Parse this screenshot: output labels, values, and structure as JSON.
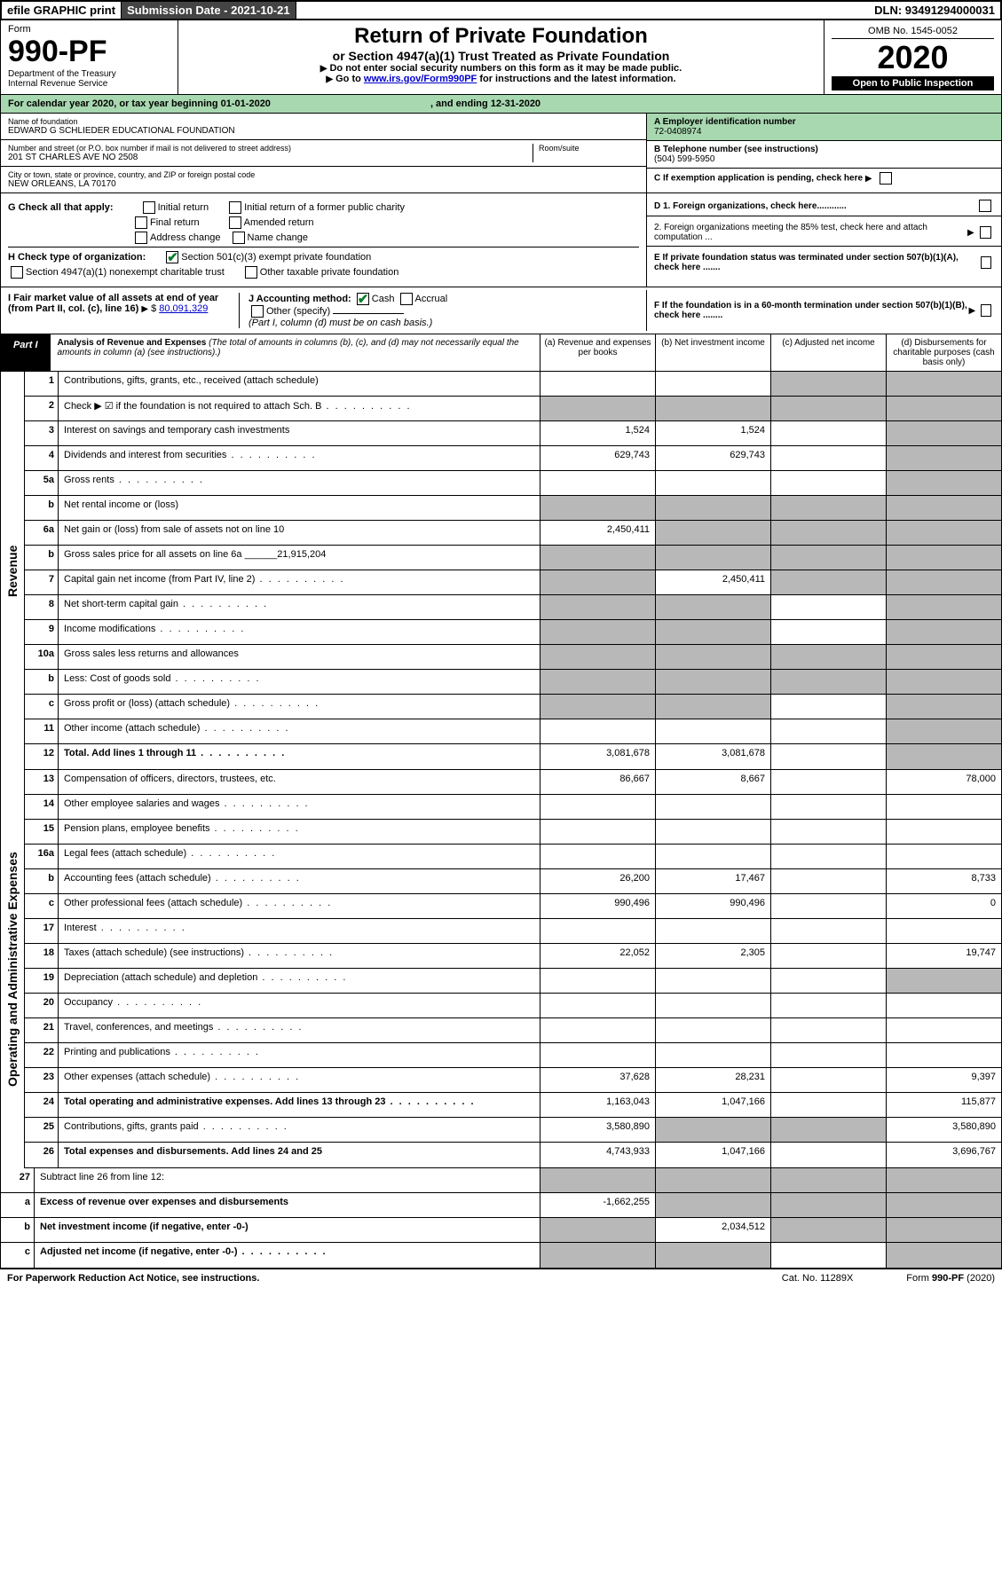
{
  "topbar": {
    "efile": "efile GRAPHIC print",
    "subdate_label": "Submission Date - 2021-10-21",
    "dln": "DLN: 93491294000031"
  },
  "header": {
    "form_label": "Form",
    "form_no": "990-PF",
    "dept": "Department of the Treasury",
    "irs": "Internal Revenue Service",
    "title": "Return of Private Foundation",
    "subtitle": "or Section 4947(a)(1) Trust Treated as Private Foundation",
    "note1": "Do not enter social security numbers on this form as it may be made public.",
    "note2_pre": "Go to ",
    "note2_link": "www.irs.gov/Form990PF",
    "note2_post": " for instructions and the latest information.",
    "omb": "OMB No. 1545-0052",
    "year": "2020",
    "openpub": "Open to Public Inspection"
  },
  "calendar": {
    "text_pre": "For calendar year 2020, or tax year beginning ",
    "begin": "01-01-2020",
    "mid": ", and ending ",
    "end": "12-31-2020"
  },
  "info": {
    "name_label": "Name of foundation",
    "name": "EDWARD G SCHLIEDER EDUCATIONAL FOUNDATION",
    "addr_label": "Number and street (or P.O. box number if mail is not delivered to street address)",
    "addr": "201 ST CHARLES AVE NO 2508",
    "room_label": "Room/suite",
    "city_label": "City or town, state or province, country, and ZIP or foreign postal code",
    "city": "NEW ORLEANS, LA  70170",
    "ein_label": "A Employer identification number",
    "ein": "72-0408974",
    "tel_label": "B Telephone number (see instructions)",
    "tel": "(504) 599-5950",
    "c_label": "C If exemption application is pending, check here",
    "g_label": "G Check all that apply:",
    "g_opts": [
      "Initial return",
      "Initial return of a former public charity",
      "Final return",
      "Amended return",
      "Address change",
      "Name change"
    ],
    "d1": "D 1. Foreign organizations, check here............",
    "d2": "2. Foreign organizations meeting the 85% test, check here and attach computation ...",
    "e": "E If private foundation status was terminated under section 507(b)(1)(A), check here .......",
    "f": "F If the foundation is in a 60-month termination under section 507(b)(1)(B), check here ........",
    "h_label": "H Check type of organization:",
    "h1": "Section 501(c)(3) exempt private foundation",
    "h2": "Section 4947(a)(1) nonexempt charitable trust",
    "h3": "Other taxable private foundation",
    "i_label": "I Fair market value of all assets at end of year (from Part II, col. (c), line 16)",
    "i_val": "80,091,329",
    "j_label": "J Accounting method:",
    "j_cash": "Cash",
    "j_accrual": "Accrual",
    "j_other": "Other (specify)",
    "j_note": "(Part I, column (d) must be on cash basis.)"
  },
  "part1": {
    "tab": "Part I",
    "title": "Analysis of Revenue and Expenses",
    "note": "(The total of amounts in columns (b), (c), and (d) may not necessarily equal the amounts in column (a) (see instructions).)",
    "col_a": "(a)  Revenue and expenses per books",
    "col_b": "(b)  Net investment income",
    "col_c": "(c)  Adjusted net income",
    "col_d": "(d)  Disbursements for charitable purposes (cash basis only)"
  },
  "side_rev": "Revenue",
  "side_exp": "Operating and Administrative Expenses",
  "rows": [
    {
      "n": "1",
      "d": "Contributions, gifts, grants, etc., received (attach schedule)",
      "a": "",
      "b": "",
      "c": "g",
      "dd": "g"
    },
    {
      "n": "2",
      "d": "Check ▶ ☑ if the foundation is not required to attach Sch. B",
      "a": "g",
      "b": "g",
      "c": "g",
      "dd": "g",
      "dots": 1
    },
    {
      "n": "3",
      "d": "Interest on savings and temporary cash investments",
      "a": "1,524",
      "b": "1,524",
      "c": "",
      "dd": "g"
    },
    {
      "n": "4",
      "d": "Dividends and interest from securities",
      "a": "629,743",
      "b": "629,743",
      "c": "",
      "dd": "g",
      "dots": 1
    },
    {
      "n": "5a",
      "d": "Gross rents",
      "a": "",
      "b": "",
      "c": "",
      "dd": "g",
      "dots": 1
    },
    {
      "n": "b",
      "d": "Net rental income or (loss)",
      "a": "g",
      "b": "g",
      "c": "g",
      "dd": "g"
    },
    {
      "n": "6a",
      "d": "Net gain or (loss) from sale of assets not on line 10",
      "a": "2,450,411",
      "b": "g",
      "c": "g",
      "dd": "g"
    },
    {
      "n": "b",
      "d": "Gross sales price for all assets on line 6a ______21,915,204",
      "a": "g",
      "b": "g",
      "c": "g",
      "dd": "g"
    },
    {
      "n": "7",
      "d": "Capital gain net income (from Part IV, line 2)",
      "a": "g",
      "b": "2,450,411",
      "c": "g",
      "dd": "g",
      "dots": 1
    },
    {
      "n": "8",
      "d": "Net short-term capital gain",
      "a": "g",
      "b": "g",
      "c": "",
      "dd": "g",
      "dots": 1
    },
    {
      "n": "9",
      "d": "Income modifications",
      "a": "g",
      "b": "g",
      "c": "",
      "dd": "g",
      "dots": 1
    },
    {
      "n": "10a",
      "d": "Gross sales less returns and allowances",
      "a": "g",
      "b": "g",
      "c": "g",
      "dd": "g"
    },
    {
      "n": "b",
      "d": "Less: Cost of goods sold",
      "a": "g",
      "b": "g",
      "c": "g",
      "dd": "g",
      "dots": 1
    },
    {
      "n": "c",
      "d": "Gross profit or (loss) (attach schedule)",
      "a": "g",
      "b": "g",
      "c": "",
      "dd": "g",
      "dots": 1
    },
    {
      "n": "11",
      "d": "Other income (attach schedule)",
      "a": "",
      "b": "",
      "c": "",
      "dd": "g",
      "dots": 1
    },
    {
      "n": "12",
      "d": "Total. Add lines 1 through 11",
      "a": "3,081,678",
      "b": "3,081,678",
      "c": "",
      "dd": "g",
      "bold": 1,
      "dots": 1
    }
  ],
  "rows2": [
    {
      "n": "13",
      "d": "Compensation of officers, directors, trustees, etc.",
      "a": "86,667",
      "b": "8,667",
      "c": "",
      "dd": "78,000"
    },
    {
      "n": "14",
      "d": "Other employee salaries and wages",
      "a": "",
      "b": "",
      "c": "",
      "dd": "",
      "dots": 1
    },
    {
      "n": "15",
      "d": "Pension plans, employee benefits",
      "a": "",
      "b": "",
      "c": "",
      "dd": "",
      "dots": 1
    },
    {
      "n": "16a",
      "d": "Legal fees (attach schedule)",
      "a": "",
      "b": "",
      "c": "",
      "dd": "",
      "dots": 1
    },
    {
      "n": "b",
      "d": "Accounting fees (attach schedule)",
      "a": "26,200",
      "b": "17,467",
      "c": "",
      "dd": "8,733",
      "dots": 1
    },
    {
      "n": "c",
      "d": "Other professional fees (attach schedule)",
      "a": "990,496",
      "b": "990,496",
      "c": "",
      "dd": "0",
      "dots": 1
    },
    {
      "n": "17",
      "d": "Interest",
      "a": "",
      "b": "",
      "c": "",
      "dd": "",
      "dots": 1
    },
    {
      "n": "18",
      "d": "Taxes (attach schedule) (see instructions)",
      "a": "22,052",
      "b": "2,305",
      "c": "",
      "dd": "19,747",
      "dots": 1
    },
    {
      "n": "19",
      "d": "Depreciation (attach schedule) and depletion",
      "a": "",
      "b": "",
      "c": "",
      "dd": "g",
      "dots": 1
    },
    {
      "n": "20",
      "d": "Occupancy",
      "a": "",
      "b": "",
      "c": "",
      "dd": "",
      "dots": 1
    },
    {
      "n": "21",
      "d": "Travel, conferences, and meetings",
      "a": "",
      "b": "",
      "c": "",
      "dd": "",
      "dots": 1
    },
    {
      "n": "22",
      "d": "Printing and publications",
      "a": "",
      "b": "",
      "c": "",
      "dd": "",
      "dots": 1
    },
    {
      "n": "23",
      "d": "Other expenses (attach schedule)",
      "a": "37,628",
      "b": "28,231",
      "c": "",
      "dd": "9,397",
      "dots": 1
    },
    {
      "n": "24",
      "d": "Total operating and administrative expenses. Add lines 13 through 23",
      "a": "1,163,043",
      "b": "1,047,166",
      "c": "",
      "dd": "115,877",
      "bold": 1,
      "dots": 1
    },
    {
      "n": "25",
      "d": "Contributions, gifts, grants paid",
      "a": "3,580,890",
      "b": "g",
      "c": "g",
      "dd": "3,580,890",
      "dots": 1
    },
    {
      "n": "26",
      "d": "Total expenses and disbursements. Add lines 24 and 25",
      "a": "4,743,933",
      "b": "1,047,166",
      "c": "",
      "dd": "3,696,767",
      "bold": 1
    }
  ],
  "rows3": [
    {
      "n": "27",
      "d": "Subtract line 26 from line 12:",
      "a": "g",
      "b": "g",
      "c": "g",
      "dd": "g"
    },
    {
      "n": "a",
      "d": "Excess of revenue over expenses and disbursements",
      "a": "-1,662,255",
      "b": "g",
      "c": "g",
      "dd": "g",
      "bold": 1
    },
    {
      "n": "b",
      "d": "Net investment income (if negative, enter -0-)",
      "a": "g",
      "b": "2,034,512",
      "c": "g",
      "dd": "g",
      "bold": 1
    },
    {
      "n": "c",
      "d": "Adjusted net income (if negative, enter -0-)",
      "a": "g",
      "b": "g",
      "c": "",
      "dd": "g",
      "bold": 1,
      "dots": 1
    }
  ],
  "footer": {
    "left": "For Paperwork Reduction Act Notice, see instructions.",
    "mid": "Cat. No. 11289X",
    "right": "Form 990-PF (2020)"
  }
}
